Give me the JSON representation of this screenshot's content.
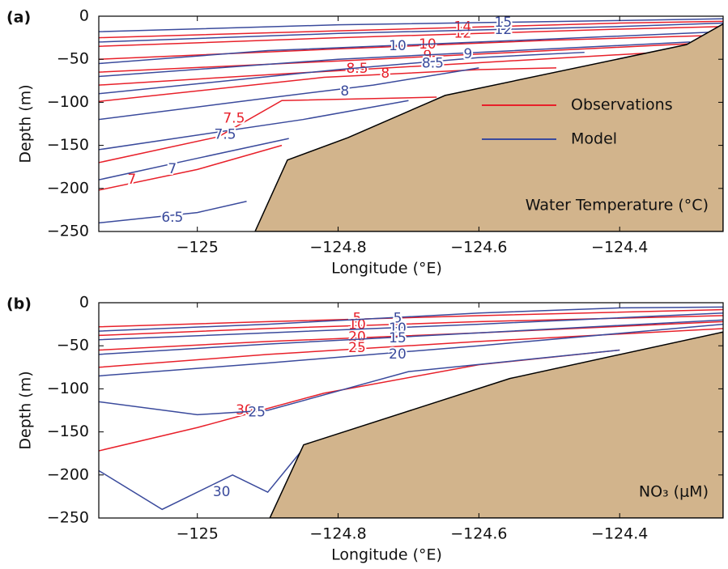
{
  "chart_data": [
    {
      "type": "contour",
      "panel_label": "(a)",
      "xlabel": "Longitude (°E)",
      "ylabel": "Depth (m)",
      "annotation": "Water Temperature (°C)",
      "xlim": [
        -125.14,
        -124.253
      ],
      "ylim": [
        -250,
        0
      ],
      "xticks": [
        {
          "value": -125,
          "label": "−125"
        },
        {
          "value": -124.8,
          "label": "−124.8"
        },
        {
          "value": -124.6,
          "label": "−124.6"
        },
        {
          "value": -124.4,
          "label": "−124.4"
        }
      ],
      "yticks": [
        {
          "value": -250,
          "label": "−250"
        },
        {
          "value": -200,
          "label": "−200"
        },
        {
          "value": -150,
          "label": "−150"
        },
        {
          "value": -100,
          "label": "−100"
        },
        {
          "value": -50,
          "label": "−50"
        },
        0
      ],
      "legend": "center right",
      "bottom": {
        "color": "#d2b48c",
        "x": [
          -124.918,
          -124.872,
          -124.786,
          -124.648,
          -124.305,
          -124.253
        ],
        "y": [
          -250,
          -167,
          -141,
          -92,
          -33,
          -9
        ]
      },
      "series": [
        {
          "name": "Observations",
          "color": "#e8202a",
          "contours": [
            {
              "level": 7,
              "x": [
                -125.14,
                -125.0,
                -124.88
              ],
              "y": [
                -202,
                -178,
                -150
              ]
            },
            {
              "level": 7.5,
              "x": [
                -125.14,
                -124.97,
                -124.88,
                -124.66
              ],
              "y": [
                -170,
                -140,
                -98,
                -94
              ]
            },
            {
              "level": 8,
              "x": [
                -125.14,
                -124.82,
                -124.6,
                -124.49
              ],
              "y": [
                -99,
                -71,
                -62,
                -60
              ]
            },
            {
              "level": 8.5,
              "x": [
                -125.14,
                -124.9,
                -124.6,
                -124.3
              ],
              "y": [
                -80,
                -68,
                -54,
                -40
              ]
            },
            {
              "level": 9,
              "x": [
                -125.14,
                -124.8,
                -124.5,
                -124.3
              ],
              "y": [
                -65,
                -52,
                -40,
                -32
              ]
            },
            {
              "level": 10,
              "x": [
                -125.14,
                -124.8,
                -124.5,
                -124.253
              ],
              "y": [
                -50,
                -38,
                -28,
                -22
              ]
            },
            {
              "level": 12,
              "x": [
                -125.14,
                -124.8,
                -124.4,
                -124.253
              ],
              "y": [
                -35,
                -25,
                -15,
                -12
              ]
            },
            {
              "level": 14,
              "x": [
                -125.14,
                -124.8,
                -124.4,
                -124.253
              ],
              "y": [
                -25,
                -17,
                -8,
                -6
              ]
            }
          ]
        },
        {
          "name": "Model",
          "color": "#3a4a9c",
          "contours": [
            {
              "level": 6.5,
              "x": [
                -125.14,
                -125.0,
                -124.93
              ],
              "y": [
                -240,
                -228,
                -215
              ]
            },
            {
              "level": 7,
              "x": [
                -125.14,
                -125.0,
                -124.87
              ],
              "y": [
                -190,
                -165,
                -142
              ]
            },
            {
              "level": 7.5,
              "x": [
                -125.14,
                -124.85,
                -124.7
              ],
              "y": [
                -155,
                -120,
                -98
              ]
            },
            {
              "level": 8,
              "x": [
                -125.14,
                -124.9,
                -124.75,
                -124.6
              ],
              "y": [
                -120,
                -95,
                -80,
                -60
              ]
            },
            {
              "level": 8.5,
              "x": [
                -125.14,
                -124.8,
                -124.6,
                -124.45
              ],
              "y": [
                -90,
                -62,
                -48,
                -42
              ]
            },
            {
              "level": 9,
              "x": [
                -125.14,
                -124.8,
                -124.5,
                -124.3
              ],
              "y": [
                -70,
                -50,
                -38,
                -30
              ]
            },
            {
              "level": 10,
              "x": [
                -125.14,
                -124.9,
                -124.6,
                -124.253
              ],
              "y": [
                -55,
                -40,
                -30,
                -18
              ]
            },
            {
              "level": 12,
              "x": [
                -125.14,
                -124.8,
                -124.4,
                -124.253
              ],
              "y": [
                -30,
                -20,
                -12,
                -8
              ]
            },
            {
              "level": 15,
              "x": [
                -125.14,
                -124.8,
                -124.4,
                -124.253
              ],
              "y": [
                -18,
                -10,
                -5,
                -3
              ]
            }
          ]
        }
      ]
    },
    {
      "type": "contour",
      "panel_label": "(b)",
      "xlabel": "Longitude (°E)",
      "ylabel": "Depth (m)",
      "annotation": "NO₃ (μM)",
      "xlim": [
        -125.14,
        -124.253
      ],
      "ylim": [
        -250,
        0
      ],
      "xticks": [
        {
          "value": -125,
          "label": "−125"
        },
        {
          "value": -124.8,
          "label": "−124.8"
        },
        {
          "value": -124.6,
          "label": "−124.6"
        },
        {
          "value": -124.4,
          "label": "−124.4"
        }
      ],
      "yticks": [
        {
          "value": -250,
          "label": "−250"
        },
        {
          "value": -200,
          "label": "−200"
        },
        {
          "value": -150,
          "label": "−150"
        },
        {
          "value": -100,
          "label": "−100"
        },
        {
          "value": -50,
          "label": "−50"
        },
        0
      ],
      "bottom": {
        "color": "#d2b48c",
        "x": [
          -124.897,
          -124.849,
          -124.556,
          -124.253
        ],
        "y": [
          -250,
          -165,
          -88,
          -34
        ]
      },
      "series": [
        {
          "color": "#e8202a",
          "contours": [
            {
              "level": 5,
              "x": [
                -125.14,
                -124.9,
                -124.6,
                -124.253
              ],
              "y": [
                -28,
                -22,
                -15,
                -8
              ]
            },
            {
              "level": 10,
              "x": [
                -125.14,
                -124.9,
                -124.6,
                -124.253
              ],
              "y": [
                -38,
                -30,
                -22,
                -15
              ]
            },
            {
              "level": 20,
              "x": [
                -125.14,
                -124.9,
                -124.6,
                -124.253
              ],
              "y": [
                -55,
                -45,
                -35,
                -22
              ]
            },
            {
              "level": 25,
              "x": [
                -125.14,
                -124.9,
                -124.6,
                -124.253
              ],
              "y": [
                -75,
                -60,
                -45,
                -30
              ]
            },
            {
              "level": 30,
              "x": [
                -125.14,
                -125.0,
                -124.82,
                -124.6,
                -124.4
              ],
              "y": [
                -172,
                -145,
                -105,
                -72,
                -55
              ]
            }
          ]
        },
        {
          "color": "#3a4a9c",
          "contours": [
            {
              "level": 5,
              "x": [
                -125.14,
                -124.9,
                -124.6,
                -124.4,
                -124.253
              ],
              "y": [
                -33,
                -25,
                -12,
                -6,
                -5
              ]
            },
            {
              "level": 10,
              "x": [
                -125.14,
                -124.9,
                -124.6,
                -124.253
              ],
              "y": [
                -43,
                -35,
                -25,
                -12
              ]
            },
            {
              "level": 15,
              "x": [
                -125.14,
                -124.9,
                -124.6,
                -124.253
              ],
              "y": [
                -60,
                -48,
                -35,
                -20
              ]
            },
            {
              "level": 20,
              "x": [
                -125.14,
                -124.9,
                -124.6,
                -124.253
              ],
              "y": [
                -85,
                -70,
                -50,
                -25
              ]
            },
            {
              "level": 25,
              "x": [
                -125.14,
                -125.0,
                -124.9,
                -124.7,
                -124.4
              ],
              "y": [
                -115,
                -130,
                -125,
                -80,
                -55
              ]
            },
            {
              "level": 30,
              "x": [
                -125.14,
                -125.05,
                -124.95,
                -124.9,
                -124.85
              ],
              "y": [
                -195,
                -240,
                -200,
                -220,
                -170
              ]
            }
          ]
        }
      ]
    }
  ]
}
